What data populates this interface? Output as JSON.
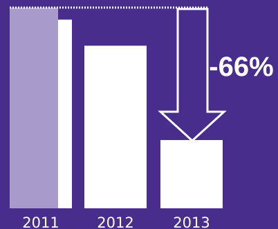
{
  "chart_data": {
    "type": "bar",
    "categories": [
      "2011",
      "2012",
      "2013"
    ],
    "values": [
      100,
      81,
      34
    ],
    "reference_value": 94,
    "change_label": "-66%",
    "ylim": [
      0,
      100
    ],
    "grid": false,
    "title": "",
    "xlabel": "",
    "ylabel": ""
  },
  "colors": {
    "background": "#482d8d",
    "bar": "#ffffff",
    "bar_highlight": "#a89bcc",
    "reference_line": "#ffffff",
    "arrow": "#ffffff"
  }
}
